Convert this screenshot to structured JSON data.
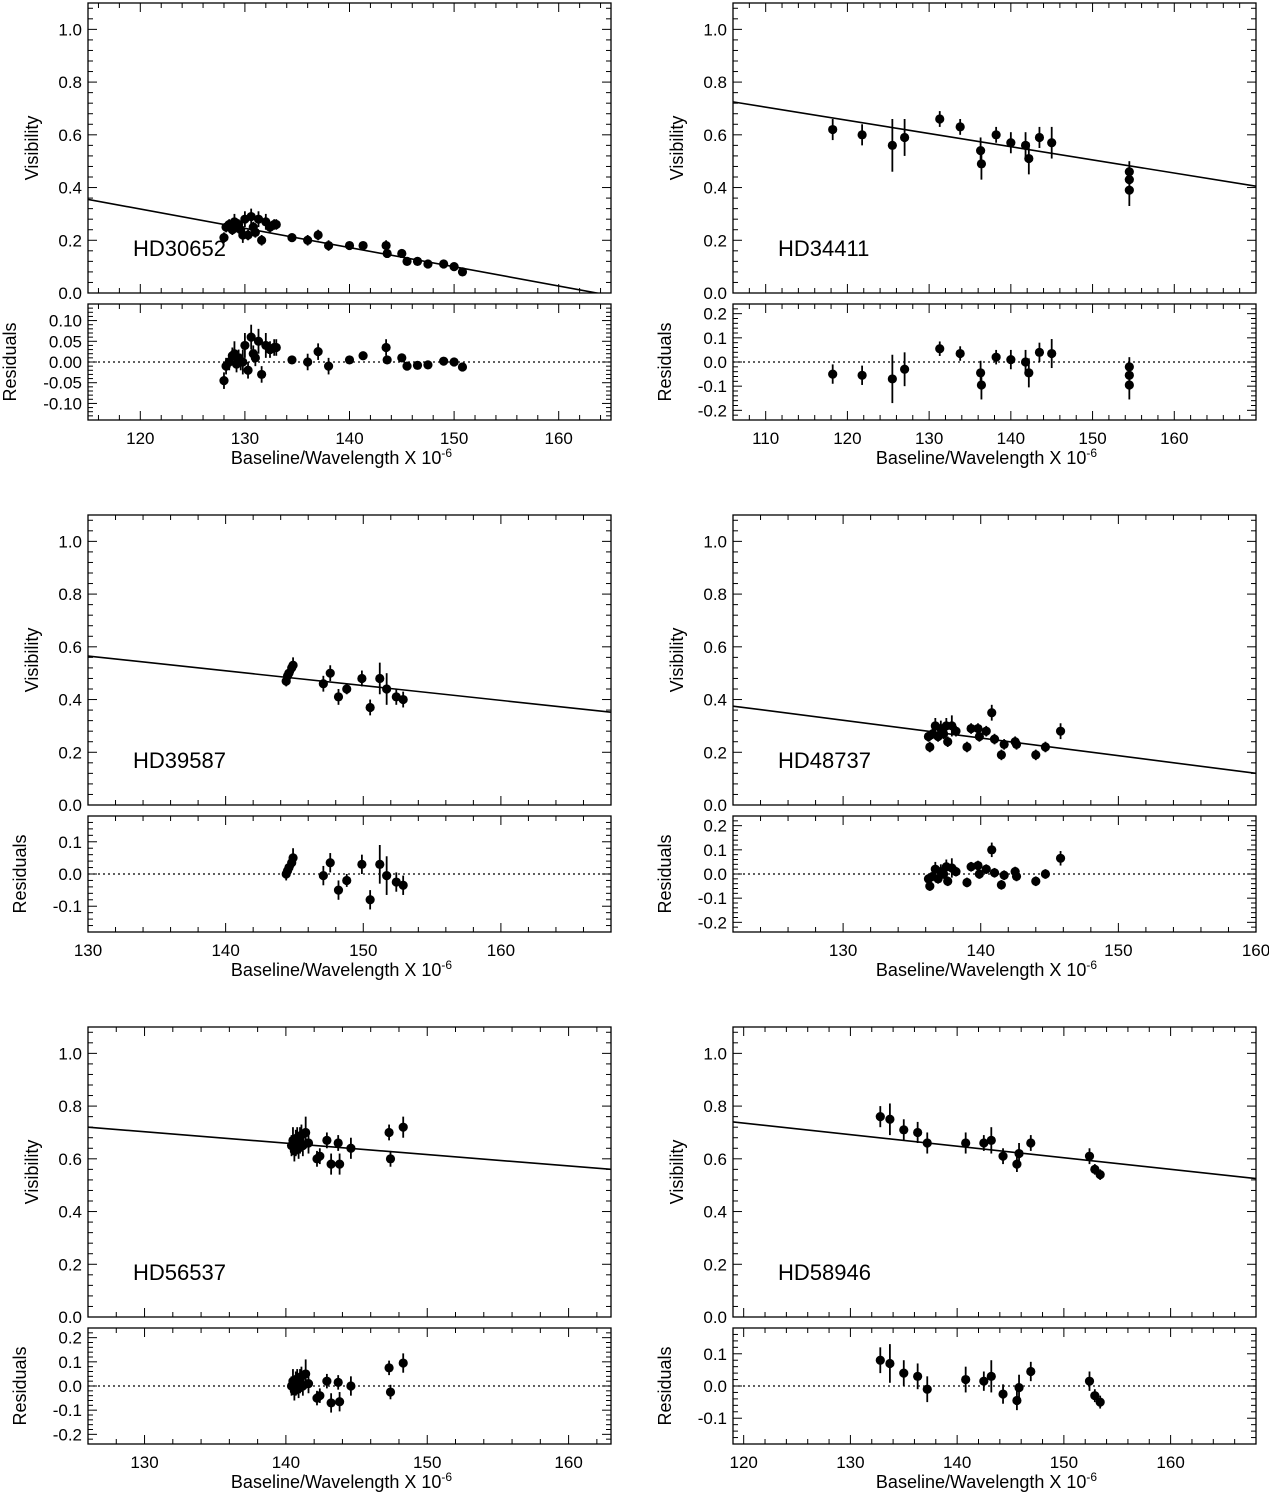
{
  "chart_data": [
    {
      "type": "scatter",
      "star": "HD30652",
      "xlabel": "Baseline/Wavelength X 10",
      "xlabel_exp": "-6",
      "ylabel_top": "Visibility",
      "ylabel_bottom": "Residuals",
      "xlim": [
        115,
        165
      ],
      "xticks": [
        120,
        130,
        140,
        150,
        160
      ],
      "ylim_top": [
        0,
        1.1
      ],
      "yticks_top": [
        "0.0",
        "0.2",
        "0.4",
        "0.6",
        "0.8",
        "1.0"
      ],
      "ylim_bottom": [
        -0.14,
        0.14
      ],
      "yticks_bottom": [
        "-0.10",
        "-0.05",
        "0.00",
        "0.05",
        "0.10"
      ],
      "fit_line": [
        [
          115,
          0.355
        ],
        [
          165,
          -0.01
        ]
      ],
      "points": [
        [
          128.0,
          0.21,
          0.02,
          -0.045
        ],
        [
          128.2,
          0.25,
          0.02,
          -0.01
        ],
        [
          128.5,
          0.26,
          0.02,
          0.0
        ],
        [
          128.8,
          0.24,
          0.02,
          0.015
        ],
        [
          129.0,
          0.27,
          0.03,
          0.02
        ],
        [
          129.2,
          0.25,
          0.02,
          -0.005
        ],
        [
          129.4,
          0.26,
          0.02,
          0.01
        ],
        [
          129.6,
          0.24,
          0.02,
          0.0
        ],
        [
          129.8,
          0.22,
          0.03,
          0.0
        ],
        [
          130.0,
          0.28,
          0.03,
          0.04
        ],
        [
          130.3,
          0.22,
          0.02,
          -0.02
        ],
        [
          130.6,
          0.29,
          0.03,
          0.06
        ],
        [
          130.8,
          0.25,
          0.02,
          0.02
        ],
        [
          131.0,
          0.23,
          0.02,
          0.01
        ],
        [
          131.3,
          0.28,
          0.03,
          0.05
        ],
        [
          131.6,
          0.2,
          0.02,
          -0.03
        ],
        [
          132.0,
          0.27,
          0.03,
          0.04
        ],
        [
          132.4,
          0.25,
          0.02,
          0.03
        ],
        [
          132.8,
          0.26,
          0.02,
          0.035
        ],
        [
          133.0,
          0.26,
          0.02,
          0.035
        ],
        [
          134.5,
          0.21,
          0.01,
          0.005
        ],
        [
          136.0,
          0.2,
          0.02,
          0.0
        ],
        [
          137.0,
          0.22,
          0.02,
          0.025
        ],
        [
          138.0,
          0.18,
          0.02,
          -0.01
        ],
        [
          140.0,
          0.18,
          0.01,
          0.005
        ],
        [
          141.3,
          0.18,
          0.01,
          0.015
        ],
        [
          143.5,
          0.18,
          0.02,
          0.035
        ],
        [
          143.6,
          0.15,
          0.01,
          0.005
        ],
        [
          145.0,
          0.15,
          0.01,
          0.01
        ],
        [
          145.5,
          0.12,
          0.01,
          -0.01
        ],
        [
          146.5,
          0.12,
          0.01,
          -0.008
        ],
        [
          147.5,
          0.11,
          0.01,
          -0.007
        ],
        [
          149.0,
          0.11,
          0.01,
          0.002
        ],
        [
          150.0,
          0.1,
          0.01,
          0.0
        ],
        [
          150.8,
          0.08,
          0.01,
          -0.012
        ]
      ]
    },
    {
      "type": "scatter",
      "star": "HD34411",
      "xlabel": "Baseline/Wavelength X 10",
      "xlabel_exp": "-6",
      "ylabel_top": "Visibility",
      "ylabel_bottom": "Residuals",
      "xlim": [
        106,
        170
      ],
      "xticks": [
        110,
        120,
        130,
        140,
        150,
        160
      ],
      "ylim_top": [
        0,
        1.1
      ],
      "yticks_top": [
        "0.0",
        "0.2",
        "0.4",
        "0.6",
        "0.8",
        "1.0"
      ],
      "ylim_bottom": [
        -0.24,
        0.24
      ],
      "yticks_bottom": [
        "-0.2",
        "-0.1",
        "0.0",
        "0.1",
        "0.2"
      ],
      "fit_line": [
        [
          106,
          0.725
        ],
        [
          170,
          0.405
        ]
      ],
      "points": [
        [
          118.2,
          0.62,
          0.04,
          -0.05
        ],
        [
          121.8,
          0.6,
          0.04,
          -0.055
        ],
        [
          125.5,
          0.56,
          0.1,
          -0.07
        ],
        [
          127.0,
          0.59,
          0.07,
          -0.03
        ],
        [
          131.3,
          0.66,
          0.03,
          0.055
        ],
        [
          133.8,
          0.63,
          0.03,
          0.035
        ],
        [
          136.3,
          0.54,
          0.05,
          -0.045
        ],
        [
          136.4,
          0.49,
          0.06,
          -0.095
        ],
        [
          138.2,
          0.6,
          0.03,
          0.02
        ],
        [
          140.0,
          0.57,
          0.04,
          0.01
        ],
        [
          141.8,
          0.56,
          0.05,
          0.0
        ],
        [
          142.2,
          0.51,
          0.06,
          -0.045
        ],
        [
          143.5,
          0.59,
          0.04,
          0.04
        ],
        [
          145.0,
          0.57,
          0.06,
          0.035
        ],
        [
          154.5,
          0.46,
          0.04,
          -0.02
        ],
        [
          154.5,
          0.43,
          0.04,
          -0.055
        ],
        [
          154.5,
          0.39,
          0.06,
          -0.095
        ]
      ]
    },
    {
      "type": "scatter",
      "star": "HD39587",
      "xlabel": "Baseline/Wavelength X 10",
      "xlabel_exp": "-6",
      "ylabel_top": "Visibility",
      "ylabel_bottom": "Residuals",
      "xlim": [
        130,
        168
      ],
      "xticks": [
        130,
        140,
        150,
        160
      ],
      "ylim_top": [
        0,
        1.1
      ],
      "yticks_top": [
        "0.0",
        "0.2",
        "0.4",
        "0.6",
        "0.8",
        "1.0"
      ],
      "ylim_bottom": [
        -0.18,
        0.18
      ],
      "yticks_bottom": [
        "-0.1",
        "0.0",
        "0.1"
      ],
      "fit_line": [
        [
          130,
          0.565
        ],
        [
          168,
          0.352
        ]
      ],
      "points": [
        [
          144.4,
          0.47,
          0.02,
          0.0
        ],
        [
          144.5,
          0.49,
          0.02,
          0.01
        ],
        [
          144.6,
          0.5,
          0.02,
          0.02
        ],
        [
          144.8,
          0.52,
          0.02,
          0.035
        ],
        [
          144.9,
          0.53,
          0.03,
          0.05
        ],
        [
          147.1,
          0.46,
          0.03,
          -0.005
        ],
        [
          147.6,
          0.5,
          0.03,
          0.035
        ],
        [
          148.2,
          0.41,
          0.03,
          -0.05
        ],
        [
          148.8,
          0.44,
          0.02,
          -0.02
        ],
        [
          149.9,
          0.48,
          0.03,
          0.03
        ],
        [
          150.5,
          0.37,
          0.03,
          -0.08
        ],
        [
          151.2,
          0.48,
          0.06,
          0.03
        ],
        [
          151.7,
          0.44,
          0.06,
          -0.005
        ],
        [
          152.4,
          0.41,
          0.03,
          -0.025
        ],
        [
          152.9,
          0.4,
          0.03,
          -0.035
        ]
      ]
    },
    {
      "type": "scatter",
      "star": "HD48737",
      "xlabel": "Baseline/Wavelength X 10",
      "xlabel_exp": "-6",
      "ylabel_top": "Visibility",
      "ylabel_bottom": "Residuals",
      "xlim": [
        122,
        160
      ],
      "xticks": [
        130,
        140,
        150,
        160
      ],
      "ylim_top": [
        0,
        1.1
      ],
      "yticks_top": [
        "0.0",
        "0.2",
        "0.4",
        "0.6",
        "0.8",
        "1.0"
      ],
      "ylim_bottom": [
        -0.24,
        0.24
      ],
      "yticks_bottom": [
        "-0.2",
        "-0.1",
        "0.0",
        "0.1",
        "0.2"
      ],
      "fit_line": [
        [
          122,
          0.375
        ],
        [
          160,
          0.12
        ]
      ],
      "points": [
        [
          136.2,
          0.26,
          0.02,
          -0.02
        ],
        [
          136.3,
          0.22,
          0.02,
          -0.05
        ],
        [
          136.5,
          0.27,
          0.02,
          -0.01
        ],
        [
          136.7,
          0.3,
          0.03,
          0.02
        ],
        [
          136.9,
          0.26,
          0.02,
          -0.02
        ],
        [
          137.1,
          0.29,
          0.03,
          0.01
        ],
        [
          137.3,
          0.27,
          0.02,
          0.0
        ],
        [
          137.5,
          0.3,
          0.03,
          0.03
        ],
        [
          137.6,
          0.24,
          0.02,
          -0.03
        ],
        [
          137.9,
          0.3,
          0.04,
          0.025
        ],
        [
          138.2,
          0.28,
          0.02,
          0.01
        ],
        [
          139.0,
          0.22,
          0.02,
          -0.035
        ],
        [
          139.3,
          0.29,
          0.02,
          0.03
        ],
        [
          139.8,
          0.29,
          0.02,
          0.035
        ],
        [
          139.9,
          0.26,
          0.02,
          0.0
        ],
        [
          140.4,
          0.28,
          0.02,
          0.02
        ],
        [
          140.8,
          0.35,
          0.03,
          0.1
        ],
        [
          141.0,
          0.25,
          0.02,
          0.005
        ],
        [
          141.5,
          0.19,
          0.02,
          -0.045
        ],
        [
          141.7,
          0.23,
          0.02,
          -0.005
        ],
        [
          142.5,
          0.24,
          0.02,
          0.01
        ],
        [
          142.6,
          0.23,
          0.02,
          -0.01
        ],
        [
          144.0,
          0.19,
          0.02,
          -0.03
        ],
        [
          144.7,
          0.22,
          0.02,
          0.0
        ],
        [
          145.8,
          0.28,
          0.03,
          0.065
        ]
      ]
    },
    {
      "type": "scatter",
      "star": "HD56537",
      "xlabel": "Baseline/Wavelength X 10",
      "xlabel_exp": "-6",
      "ylabel_top": "Visibility",
      "ylabel_bottom": "Residuals",
      "xlim": [
        126,
        163
      ],
      "xticks": [
        130,
        140,
        150,
        160
      ],
      "ylim_top": [
        0,
        1.1
      ],
      "yticks_top": [
        "0.0",
        "0.2",
        "0.4",
        "0.6",
        "0.8",
        "1.0"
      ],
      "ylim_bottom": [
        -0.24,
        0.24
      ],
      "yticks_bottom": [
        "-0.2",
        "-0.1",
        "0.0",
        "0.1",
        "0.2"
      ],
      "fit_line": [
        [
          126,
          0.72
        ],
        [
          163,
          0.56
        ]
      ],
      "points": [
        [
          140.4,
          0.65,
          0.04,
          0.0
        ],
        [
          140.5,
          0.67,
          0.05,
          0.02
        ],
        [
          140.6,
          0.63,
          0.04,
          -0.02
        ],
        [
          140.7,
          0.66,
          0.05,
          0.01
        ],
        [
          140.8,
          0.68,
          0.04,
          0.03
        ],
        [
          140.9,
          0.64,
          0.04,
          -0.01
        ],
        [
          141.0,
          0.67,
          0.05,
          0.02
        ],
        [
          141.1,
          0.69,
          0.04,
          0.04
        ],
        [
          141.2,
          0.65,
          0.04,
          0.0
        ],
        [
          141.4,
          0.7,
          0.06,
          0.05
        ],
        [
          141.6,
          0.66,
          0.04,
          0.01
        ],
        [
          142.2,
          0.6,
          0.03,
          -0.05
        ],
        [
          142.4,
          0.61,
          0.03,
          -0.04
        ],
        [
          142.9,
          0.67,
          0.03,
          0.02
        ],
        [
          143.2,
          0.58,
          0.04,
          -0.07
        ],
        [
          143.7,
          0.66,
          0.03,
          0.015
        ],
        [
          143.8,
          0.58,
          0.04,
          -0.065
        ],
        [
          144.6,
          0.64,
          0.04,
          0.0
        ],
        [
          147.3,
          0.7,
          0.03,
          0.075
        ],
        [
          147.4,
          0.6,
          0.03,
          -0.025
        ],
        [
          148.3,
          0.72,
          0.04,
          0.095
        ]
      ]
    },
    {
      "type": "scatter",
      "star": "HD58946",
      "xlabel": "Baseline/Wavelength X 10",
      "xlabel_exp": "-6",
      "ylabel_top": "Visibility",
      "ylabel_bottom": "Residuals",
      "xlim": [
        119,
        168
      ],
      "xticks": [
        120,
        130,
        140,
        150,
        160
      ],
      "ylim_top": [
        0,
        1.1
      ],
      "yticks_top": [
        "0.0",
        "0.2",
        "0.4",
        "0.6",
        "0.8",
        "1.0"
      ],
      "ylim_bottom": [
        -0.18,
        0.18
      ],
      "yticks_bottom": [
        "-0.1",
        "0.0",
        "0.1"
      ],
      "fit_line": [
        [
          119,
          0.74
        ],
        [
          168,
          0.525
        ]
      ],
      "points": [
        [
          132.8,
          0.76,
          0.04,
          0.08
        ],
        [
          133.7,
          0.75,
          0.06,
          0.07
        ],
        [
          135.0,
          0.71,
          0.04,
          0.04
        ],
        [
          136.3,
          0.7,
          0.04,
          0.03
        ],
        [
          137.2,
          0.66,
          0.04,
          -0.01
        ],
        [
          140.8,
          0.66,
          0.04,
          0.02
        ],
        [
          142.5,
          0.66,
          0.03,
          0.015
        ],
        [
          143.2,
          0.67,
          0.05,
          0.03
        ],
        [
          144.3,
          0.61,
          0.03,
          -0.025
        ],
        [
          145.6,
          0.58,
          0.03,
          -0.045
        ],
        [
          145.8,
          0.62,
          0.04,
          -0.005
        ],
        [
          146.9,
          0.66,
          0.03,
          0.045
        ],
        [
          152.4,
          0.61,
          0.03,
          0.015
        ],
        [
          152.9,
          0.56,
          0.02,
          -0.03
        ],
        [
          153.4,
          0.54,
          0.02,
          -0.05
        ]
      ]
    }
  ]
}
